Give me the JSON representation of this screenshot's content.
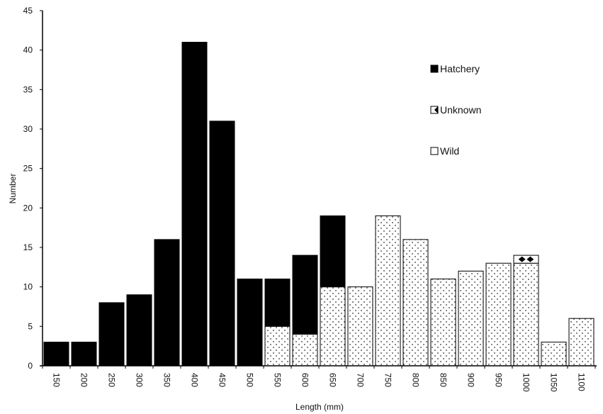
{
  "chart_data": {
    "type": "bar",
    "stacked": true,
    "xlabel": "Length (mm)",
    "ylabel": "Number",
    "ylim": [
      0,
      45
    ],
    "yticks": [
      0,
      5,
      10,
      15,
      20,
      25,
      30,
      35,
      40,
      45
    ],
    "xticks": [
      "150",
      "200",
      "250",
      "300",
      "350",
      "400",
      "450",
      "500",
      "550",
      "600",
      "650",
      "700",
      "750",
      "800",
      "850",
      "900",
      "950",
      "1000",
      "1050",
      "1100",
      "1150"
    ],
    "categories": [
      "150",
      "200",
      "250",
      "300",
      "350",
      "400",
      "450",
      "500",
      "550",
      "600",
      "650",
      "700",
      "750",
      "800",
      "850",
      "900",
      "950",
      "1000",
      "1050",
      "1100"
    ],
    "series": [
      {
        "name": "Wild",
        "color": "#ffffff",
        "pattern": "dotted",
        "values": [
          0,
          0,
          0,
          0,
          0,
          0,
          0,
          0,
          5,
          4,
          10,
          10,
          19,
          16,
          11,
          12,
          13,
          13,
          3,
          6
        ]
      },
      {
        "name": "Unknown",
        "color": "#111111",
        "pattern": "diamond",
        "values": [
          0,
          0,
          0,
          0,
          0,
          0,
          0,
          0,
          0,
          0,
          0,
          0,
          0,
          0,
          0,
          0,
          0,
          1,
          0,
          0
        ]
      },
      {
        "name": "Hatchery",
        "color": "#000000",
        "pattern": "solid",
        "values": [
          3,
          3,
          8,
          9,
          16,
          41,
          31,
          11,
          6,
          10,
          9,
          0,
          0,
          0,
          0,
          0,
          0,
          0,
          0,
          0
        ]
      }
    ],
    "legend": {
      "position": "right",
      "items": [
        {
          "label": "Hatchery",
          "pattern": "solid"
        },
        {
          "label": "Unknown",
          "pattern": "diamond"
        },
        {
          "label": "Wild",
          "pattern": "dotted"
        }
      ]
    },
    "grid": false
  }
}
